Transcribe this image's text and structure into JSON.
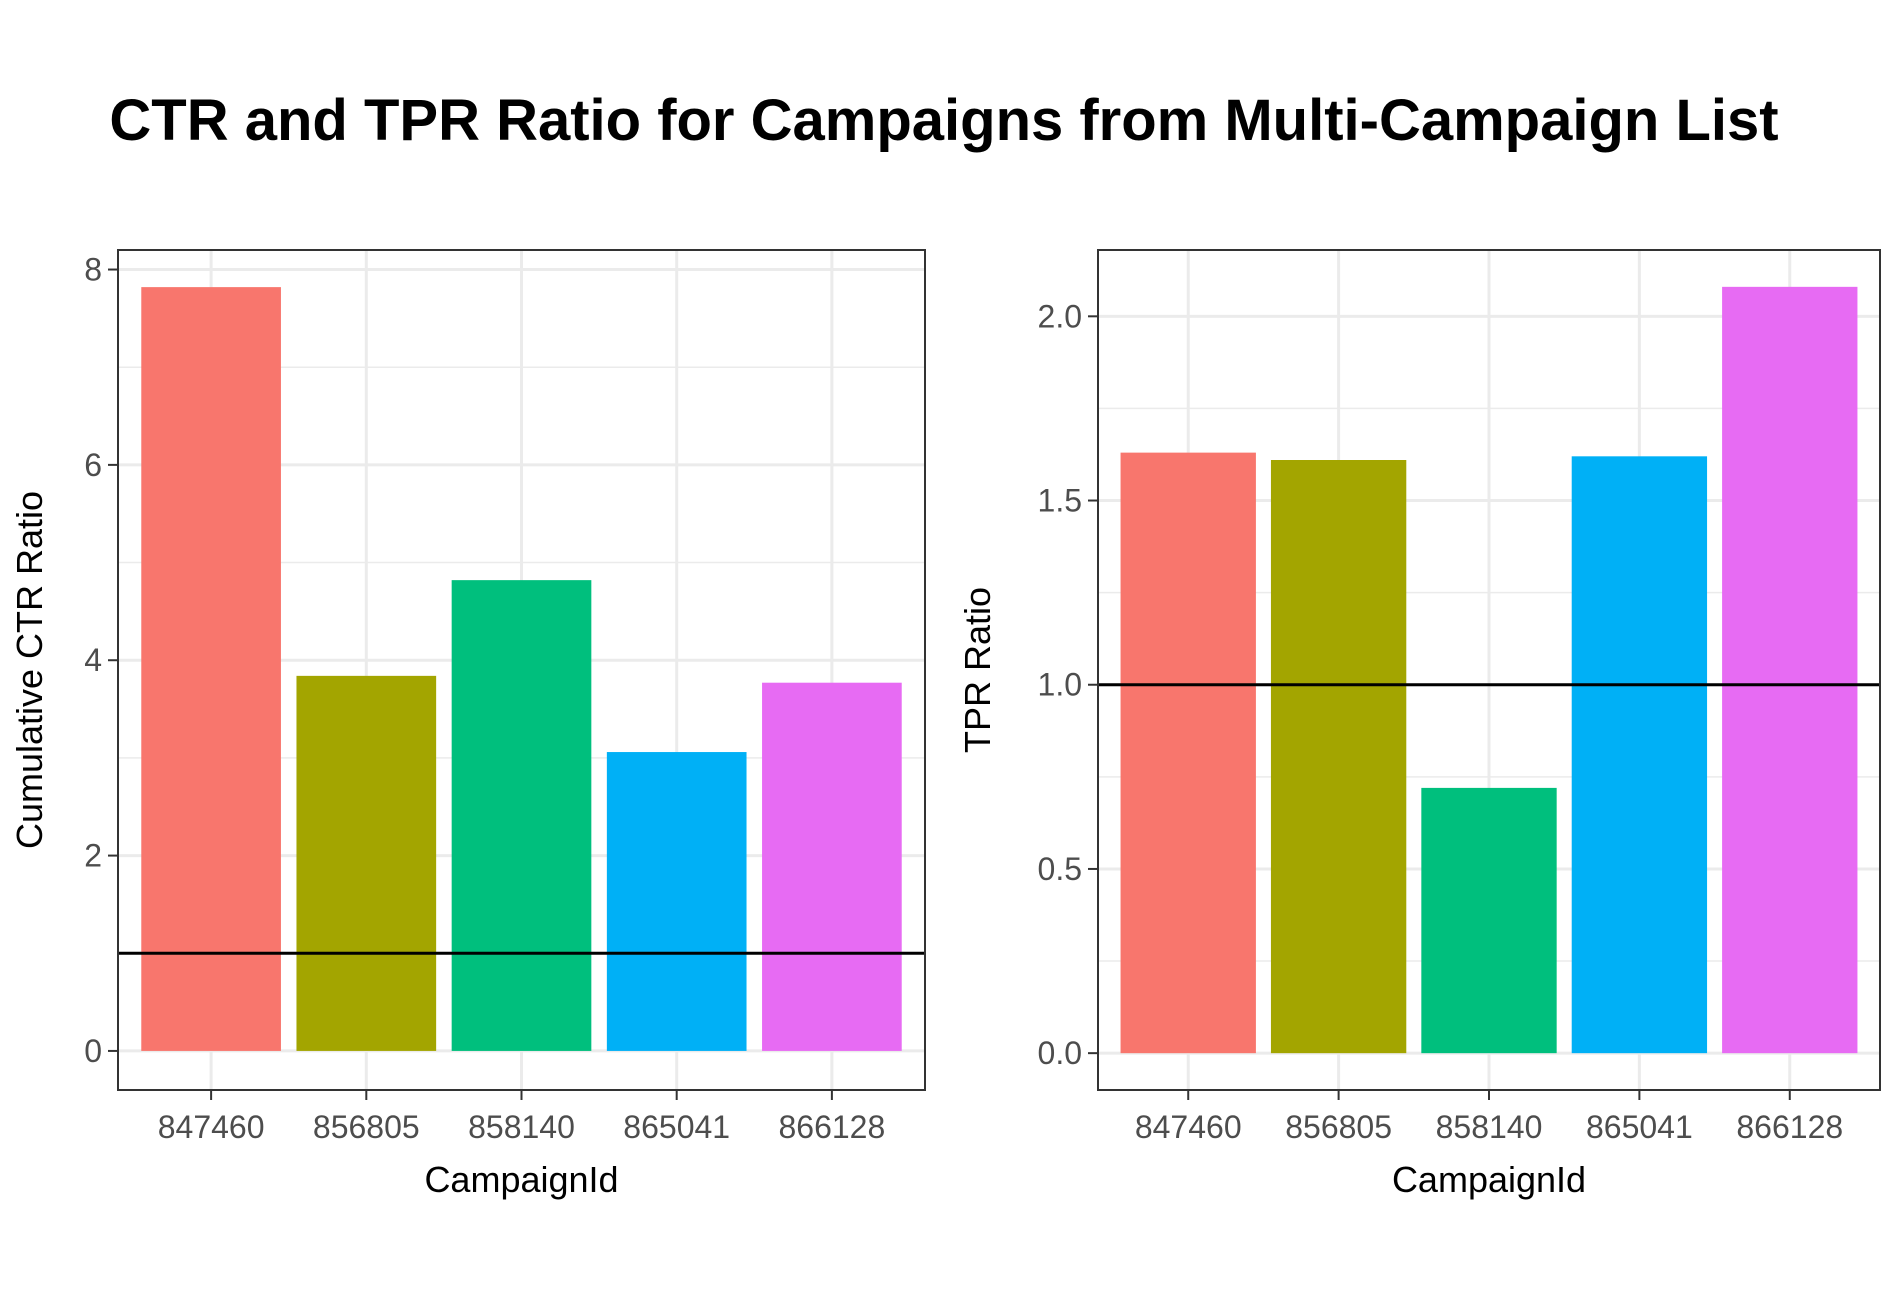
{
  "title": "CTR and TPR Ratio for Campaigns from Multi-Campaign List",
  "chart_data": [
    {
      "type": "bar",
      "categories": [
        "847460",
        "856805",
        "858140",
        "865041",
        "866128"
      ],
      "values": [
        7.82,
        3.84,
        4.82,
        3.06,
        3.77
      ],
      "colors": [
        "#F8766D",
        "#A3A500",
        "#00BF7D",
        "#00B0F6",
        "#E76BF3"
      ],
      "xlabel": "CampaignId",
      "ylabel": "Cumulative CTR Ratio",
      "ylim": [
        -0.4,
        8.2
      ],
      "yticks": [
        0,
        2,
        4,
        6,
        8
      ],
      "yticklabels": [
        "0",
        "2",
        "4",
        "6",
        "8"
      ],
      "hline": 1,
      "grid": true
    },
    {
      "type": "bar",
      "categories": [
        "847460",
        "856805",
        "858140",
        "865041",
        "866128"
      ],
      "values": [
        1.63,
        1.61,
        0.72,
        1.62,
        2.08
      ],
      "colors": [
        "#F8766D",
        "#A3A500",
        "#00BF7D",
        "#00B0F6",
        "#E76BF3"
      ],
      "xlabel": "CampaignId",
      "ylabel": "TPR Ratio",
      "ylim": [
        -0.1,
        2.18
      ],
      "yticks": [
        0,
        0.5,
        1,
        1.5,
        2
      ],
      "yticklabels": [
        "0.0",
        "0.5",
        "1.0",
        "1.5",
        "2.0"
      ],
      "hline": 1,
      "grid": true
    }
  ]
}
